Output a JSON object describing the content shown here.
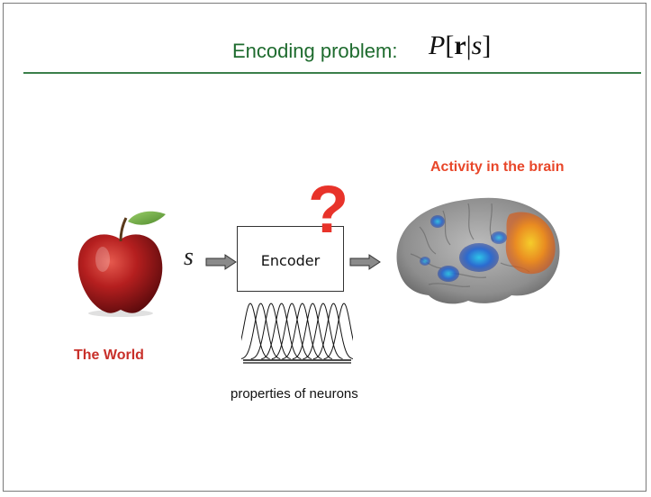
{
  "title": {
    "text": "Encoding problem:",
    "math": {
      "p": "P",
      "lb": "[",
      "r": "r",
      "bar": "|",
      "s": "s",
      "rb": "]"
    }
  },
  "world": {
    "label": "The World",
    "icon": "apple-icon"
  },
  "stimulus": {
    "symbol": "s"
  },
  "encoder": {
    "label": "Encoder",
    "unknown_mark": "?"
  },
  "neurons": {
    "label": "properties of neurons",
    "icon": "tuning-curves-icon"
  },
  "brain": {
    "label": "Activity in the brain",
    "icon": "brain-activity-icon"
  },
  "colors": {
    "title_green": "#1e6b2e",
    "rule_green": "#3b7f4a",
    "world_red": "#c8302a",
    "question_red": "#e8332a",
    "brain_label": "#e8472a",
    "arrow_gray": "#8a8a8a"
  }
}
